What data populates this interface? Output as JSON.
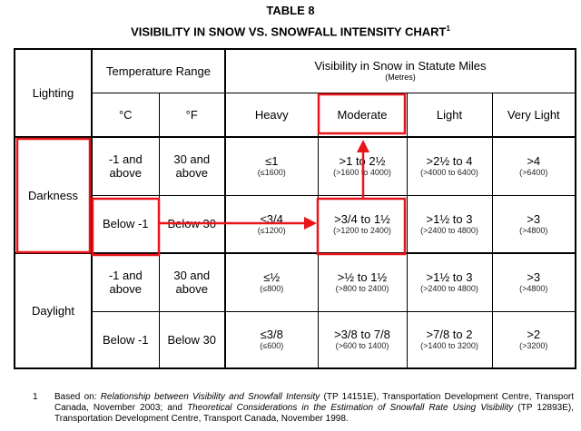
{
  "title": "TABLE 8",
  "subtitle": "VISIBILITY IN SNOW VS. SNOWFALL INTENSITY CHART",
  "subtitle_sup": "1",
  "header": {
    "lighting": "Lighting",
    "temperature_range": "Temperature Range",
    "visibility": "Visibility in Snow in Statute Miles",
    "visibility_unit": "(Metres)",
    "celsius": "°C",
    "fahrenheit": "°F",
    "heavy": "Heavy",
    "moderate": "Moderate",
    "light": "Light",
    "very_light": "Very Light"
  },
  "rows": [
    {
      "lighting": "Darkness",
      "c": "-1 and above",
      "f": "30 and above",
      "heavy": "≤1",
      "heavy_m": "(≤1600)",
      "moderate": ">1 to 2½",
      "moderate_m": "(>1600 to 4000)",
      "light": ">2½ to 4",
      "light_m": "(>4000 to 6400)",
      "very_light": ">4",
      "very_light_m": "(>6400)"
    },
    {
      "c": "Below -1",
      "f": "Below 30",
      "heavy": "≤3/4",
      "heavy_m": "(≤1200)",
      "moderate": ">3/4 to 1½",
      "moderate_m": "(>1200 to 2400)",
      "light": ">1½ to 3",
      "light_m": "(>2400 to 4800)",
      "very_light": ">3",
      "very_light_m": "(>4800)"
    },
    {
      "lighting": "Daylight",
      "c": "-1 and above",
      "f": "30 and above",
      "heavy": "≤½",
      "heavy_m": "(≤800)",
      "moderate": ">½ to 1½",
      "moderate_m": "(>800 to 2400)",
      "light": ">1½ to 3",
      "light_m": "(>2400 to 4800)",
      "very_light": ">3",
      "very_light_m": "(>4800)"
    },
    {
      "c": "Below -1",
      "f": "Below 30",
      "heavy": "≤3/8",
      "heavy_m": "(≤600)",
      "moderate": ">3/8 to 7/8",
      "moderate_m": "(>600 to 1400)",
      "light": ">7/8 to 2",
      "light_m": "(>1400 to 3200)",
      "very_light": ">2",
      "very_light_m": "(>3200)"
    }
  ],
  "footnote": {
    "number": "1",
    "prefix": "Based on: ",
    "ref1": "Relationship between Visibility and Snowfall Intensity",
    "mid1": " (TP 14151E), Transportation Development Centre, Transport Canada, November 2003; and ",
    "ref2": "Theoretical Considerations in the Estimation of Snowfall Rate Using Visibility",
    "mid2": " (TP 12893E), Transportation Development Centre, Transport Canada, November 1998."
  },
  "annotation_color": "#e8151b"
}
